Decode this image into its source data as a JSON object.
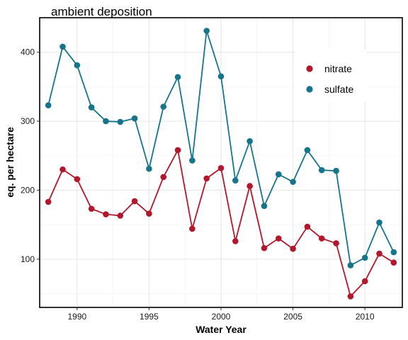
{
  "chart_data": {
    "type": "line",
    "title": "ambient deposition",
    "xlabel": "Water Year",
    "ylabel": "eq. per hectare",
    "xlim": [
      1987.4,
      2012.6
    ],
    "ylim": [
      30,
      450
    ],
    "x_ticks": [
      1990,
      1995,
      2000,
      2005,
      2010
    ],
    "y_ticks": [
      100,
      200,
      300,
      400
    ],
    "grid": true,
    "legend_position": "top-right",
    "x": [
      1988,
      1989,
      1990,
      1991,
      1992,
      1993,
      1994,
      1995,
      1996,
      1997,
      1998,
      1999,
      2000,
      2001,
      2002,
      2003,
      2004,
      2005,
      2006,
      2007,
      2008,
      2009,
      2010,
      2011,
      2012
    ],
    "series": [
      {
        "name": "nitrate",
        "color": "#b2182b",
        "values": [
          183,
          230,
          216,
          173,
          165,
          163,
          184,
          166,
          219,
          258,
          144,
          217,
          232,
          126,
          206,
          116,
          130,
          115,
          147,
          130,
          123,
          46,
          68,
          108,
          95
        ]
      },
      {
        "name": "sulfate",
        "color": "#16758a",
        "values": [
          323,
          408,
          381,
          320,
          300,
          299,
          304,
          231,
          321,
          364,
          243,
          431,
          365,
          214,
          271,
          177,
          223,
          212,
          258,
          229,
          228,
          91,
          102,
          153,
          110
        ]
      }
    ]
  }
}
